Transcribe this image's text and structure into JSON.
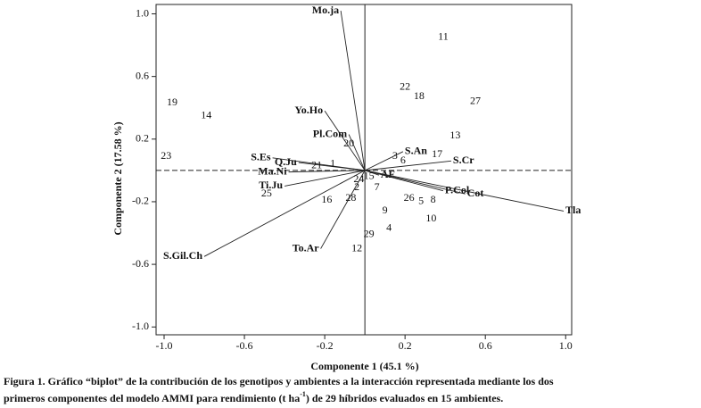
{
  "chart_data": {
    "type": "biplot",
    "x_label": "Componente 1 (45.1 %)",
    "y_label": "Componente 2 (17.58 %)",
    "xlim": [
      -1.04,
      1.03
    ],
    "ylim": [
      -1.05,
      1.06
    ],
    "xticks": [
      {
        "value": -1,
        "label": "-1.0"
      },
      -0.6,
      -0.2,
      0.2,
      0.6,
      {
        "value": 1,
        "label": "1.0"
      }
    ],
    "yticks": [
      {
        "value": -1,
        "label": "-1.0"
      },
      -0.6,
      -0.2,
      0.2,
      0.6,
      {
        "value": 1,
        "label": "1.0"
      }
    ],
    "genotypes": {
      "labels": [
        "19",
        "14",
        "23",
        "11",
        "22",
        "18",
        "27",
        "13",
        "17",
        "20",
        "21",
        "1",
        "3",
        "6",
        "15",
        "24",
        "2",
        "7",
        "28",
        "16",
        "25",
        "26",
        "5",
        "8",
        "9",
        "10",
        "4",
        "29",
        "12"
      ],
      "x": [
        -0.96,
        -0.79,
        -0.99,
        0.39,
        0.2,
        0.27,
        0.55,
        0.45,
        0.36,
        -0.08,
        -0.24,
        -0.16,
        0.15,
        0.19,
        0.02,
        -0.03,
        -0.04,
        0.06,
        -0.07,
        -0.19,
        -0.49,
        0.22,
        0.28,
        0.34,
        0.1,
        0.33,
        0.12,
        0.02,
        -0.04
      ],
      "y": [
        0.43,
        0.35,
        0.09,
        0.85,
        0.53,
        0.47,
        0.44,
        0.22,
        0.1,
        0.17,
        0.03,
        0.04,
        0.09,
        0.06,
        -0.04,
        -0.06,
        -0.11,
        -0.11,
        -0.18,
        -0.19,
        -0.15,
        -0.18,
        -0.2,
        -0.19,
        -0.26,
        -0.31,
        -0.37,
        -0.41,
        -0.5
      ]
    },
    "environments": {
      "labels": [
        "Mo.ja",
        "Yo.Ho",
        "Pl.Com",
        "S.Es",
        "Q.Ju",
        "Ma.Ni",
        "Ti.Ju",
        "S.Gil.Ch",
        "To.Ar",
        "S.An",
        "S.Cr",
        "AF",
        "P.Col",
        "Cot",
        "Tla"
      ],
      "x": [
        -0.12,
        -0.2,
        -0.08,
        -0.46,
        -0.33,
        -0.38,
        -0.4,
        -0.8,
        -0.22,
        0.19,
        0.43,
        0.07,
        0.39,
        0.5,
        0.99
      ],
      "y": [
        1.02,
        0.38,
        0.23,
        0.08,
        0.05,
        -0.01,
        -0.1,
        -0.55,
        -0.5,
        0.12,
        0.06,
        -0.03,
        -0.13,
        -0.15,
        -0.26
      ],
      "color": "#222222"
    }
  },
  "caption": {
    "line1": "Figura 1. Gráfico “biplot” de la contribución de los genotipos y ambientes a la interacción representada mediante los dos",
    "line2_a": "primeros componentes del modelo AMMI para rendimiento (t ha",
    "line2_sup": "-1",
    "line2_b": ") de 29 híbridos evaluados en 15 ambientes."
  }
}
